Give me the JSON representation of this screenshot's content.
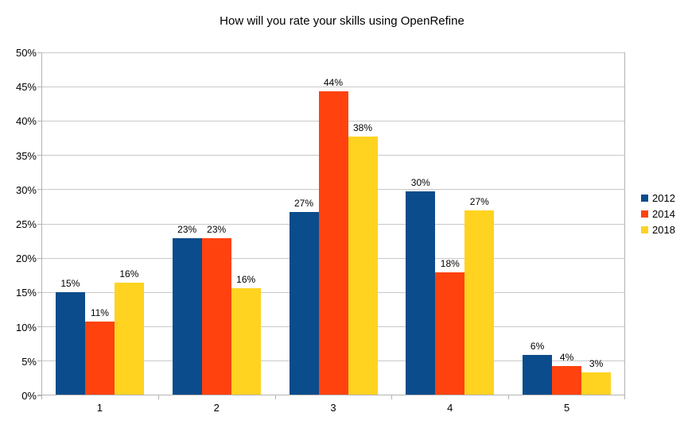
{
  "title": "How will you rate your skills using OpenRefine",
  "chart_data": {
    "type": "bar",
    "title": "How will you rate your skills using OpenRefine",
    "xlabel": "",
    "ylabel": "",
    "categories": [
      "1",
      "2",
      "3",
      "4",
      "5"
    ],
    "series": [
      {
        "name": "2012",
        "color": "#0b4c8c",
        "values": [
          15.0,
          22.9,
          26.7,
          29.7,
          5.9
        ],
        "labels": [
          "15%",
          "23%",
          "27%",
          "30%",
          "6%"
        ]
      },
      {
        "name": "2014",
        "color": "#ff420e",
        "values": [
          10.8,
          22.9,
          44.3,
          17.9,
          4.3
        ],
        "labels": [
          "11%",
          "23%",
          "44%",
          "18%",
          "4%"
        ]
      },
      {
        "name": "2018",
        "color": "#ffd320",
        "values": [
          16.4,
          15.6,
          37.7,
          27.0,
          3.3
        ],
        "labels": [
          "16%",
          "16%",
          "38%",
          "27%",
          "3%"
        ]
      }
    ],
    "ylim": [
      0,
      50
    ],
    "ytick_step": 5,
    "ytick_labels": [
      "0%",
      "5%",
      "10%",
      "15%",
      "20%",
      "25%",
      "30%",
      "35%",
      "40%",
      "45%",
      "50%"
    ],
    "grid": true,
    "legend_position": "right",
    "data_labels": true
  }
}
